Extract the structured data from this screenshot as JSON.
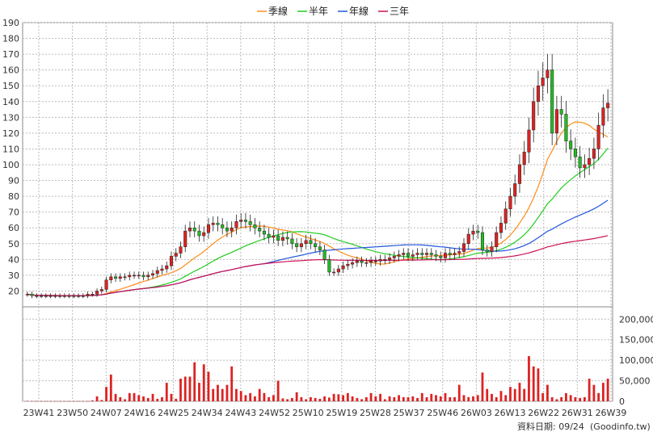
{
  "chart_data": {
    "type": "candlestick",
    "legend": [
      {
        "name": "季線",
        "color": "#ff8c1a"
      },
      {
        "name": "半年",
        "color": "#22cc22"
      },
      {
        "name": "年線",
        "color": "#2255dd"
      },
      {
        "name": "三年",
        "color": "#cc1155"
      }
    ],
    "price_axis": {
      "min": 10,
      "max": 190,
      "ticks": [
        20,
        30,
        40,
        50,
        60,
        70,
        80,
        90,
        100,
        110,
        120,
        130,
        140,
        150,
        160,
        170,
        180,
        190
      ]
    },
    "volume_axis": {
      "min": 0,
      "max": 230000,
      "ticks": [
        0,
        50000,
        100000,
        150000,
        200000
      ],
      "tick_labels": [
        "0",
        "50,000",
        "100,000",
        "150,000",
        "200,000"
      ]
    },
    "x_labels": [
      "23W41",
      "23W50",
      "24W07",
      "24W16",
      "24W25",
      "24W34",
      "24W43",
      "24W52",
      "25W10",
      "25W19",
      "25W28",
      "25W37",
      "25W46",
      "26W03",
      "26W13",
      "26W22",
      "26W31",
      "26W39"
    ],
    "close": [
      18,
      17,
      17,
      17,
      17,
      17,
      17,
      17,
      17,
      17,
      17,
      17,
      17,
      18,
      18,
      20,
      21,
      27,
      29,
      28,
      29,
      29,
      30,
      30,
      30,
      29,
      30,
      31,
      33,
      34,
      36,
      42,
      44,
      48,
      58,
      60,
      58,
      55,
      57,
      62,
      63,
      62,
      60,
      58,
      60,
      64,
      65,
      64,
      62,
      60,
      58,
      56,
      54,
      55,
      52,
      54,
      53,
      50,
      48,
      50,
      52,
      50,
      48,
      46,
      40,
      32,
      32,
      34,
      36,
      37,
      38,
      39,
      38,
      38,
      39,
      39,
      40,
      40,
      41,
      42,
      43,
      44,
      42,
      43,
      44,
      43,
      44,
      43,
      42,
      41,
      44,
      43,
      44,
      45,
      50,
      56,
      58,
      57,
      46,
      45,
      48,
      57,
      63,
      72,
      80,
      88,
      100,
      108,
      122,
      140,
      150,
      155,
      160,
      120,
      135,
      132,
      115,
      110,
      105,
      98,
      100,
      104,
      110,
      125,
      136,
      139
    ],
    "volume": [
      1000,
      500,
      500,
      500,
      300,
      300,
      300,
      300,
      300,
      300,
      300,
      300,
      300,
      300,
      2000,
      12000,
      3000,
      35000,
      65000,
      18000,
      10000,
      5000,
      20000,
      20000,
      15000,
      12000,
      8000,
      18000,
      6000,
      10000,
      45000,
      18000,
      6000,
      55000,
      60000,
      60000,
      95000,
      45000,
      90000,
      72000,
      30000,
      40000,
      30000,
      40000,
      85000,
      30000,
      25000,
      15000,
      20000,
      12000,
      30000,
      20000,
      10000,
      15000,
      50000,
      7000,
      5000,
      8000,
      22000,
      10000,
      5000,
      10000,
      8000,
      6000,
      12000,
      9000,
      18000,
      17000,
      15000,
      20000,
      12000,
      8000,
      5000,
      10000,
      20000,
      12000,
      18000,
      5000,
      12000,
      10000,
      15000,
      10000,
      10000,
      12000,
      8000,
      20000,
      10000,
      18000,
      15000,
      12000,
      20000,
      10000,
      10000,
      40000,
      15000,
      10000,
      12000,
      15000,
      70000,
      30000,
      18000,
      10000,
      25000,
      15000,
      35000,
      30000,
      45000,
      30000,
      110000,
      85000,
      80000,
      20000,
      40000,
      10000,
      5000,
      10000,
      20000,
      15000,
      10000,
      8000,
      10000,
      55000,
      40000,
      20000,
      45000,
      55000
    ],
    "footer": "資料日期: 09/24",
    "watermark": "(Goodinfo.tw)"
  }
}
